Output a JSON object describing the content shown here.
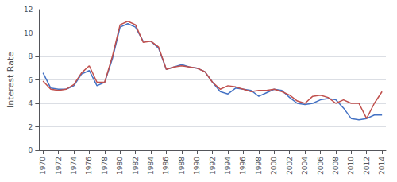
{
  "chart_data": {
    "type": "line",
    "ylabel": "Interest Rate",
    "x": [
      1970,
      1971,
      1972,
      1973,
      1974,
      1975,
      1976,
      1977,
      1978,
      1979,
      1980,
      1981,
      1982,
      1983,
      1984,
      1985,
      1986,
      1987,
      1988,
      1989,
      1990,
      1991,
      1992,
      1993,
      1994,
      1995,
      1996,
      1997,
      1998,
      1999,
      2000,
      2001,
      2002,
      2003,
      2004,
      2005,
      2006,
      2007,
      2008,
      2009,
      2010,
      2011,
      2012,
      2013,
      2014
    ],
    "series": [
      {
        "color": "#4472C4",
        "values": [
          6.6,
          5.3,
          5.2,
          5.2,
          5.5,
          6.5,
          6.8,
          5.5,
          5.8,
          7.8,
          10.5,
          10.8,
          10.5,
          9.3,
          9.3,
          8.7,
          6.9,
          7.1,
          7.3,
          7.1,
          7.0,
          6.7,
          5.8,
          5.0,
          4.8,
          5.3,
          5.2,
          5.1,
          4.6,
          4.9,
          5.2,
          5.1,
          4.5,
          4.0,
          3.9,
          4.0,
          4.3,
          4.4,
          4.3,
          3.6,
          2.7,
          2.6,
          2.7,
          3.0,
          3.0
        ]
      },
      {
        "color": "#C0504D",
        "values": [
          5.9,
          5.2,
          5.1,
          5.2,
          5.6,
          6.6,
          7.2,
          5.8,
          5.8,
          8.0,
          10.7,
          11.0,
          10.7,
          9.2,
          9.3,
          8.8,
          6.9,
          7.1,
          7.2,
          7.1,
          7.0,
          6.7,
          5.8,
          5.2,
          5.5,
          5.4,
          5.2,
          5.0,
          5.1,
          5.1,
          5.2,
          5.0,
          4.7,
          4.2,
          4.0,
          4.6,
          4.7,
          4.5,
          4.0,
          4.3,
          4.0,
          4.0,
          2.7,
          4.0,
          5.0
        ]
      }
    ],
    "xlim": [
      1969.5,
      2014.5
    ],
    "xticks": [
      1970,
      1972,
      1974,
      1976,
      1978,
      1980,
      1982,
      1984,
      1986,
      1988,
      1990,
      1992,
      1994,
      1996,
      1998,
      2000,
      2002,
      2004,
      2006,
      2008,
      2010,
      2012,
      2014
    ],
    "ylim": [
      0,
      12
    ],
    "yticks": [
      0,
      2,
      4,
      6,
      8,
      10,
      12
    ],
    "grid": true
  }
}
